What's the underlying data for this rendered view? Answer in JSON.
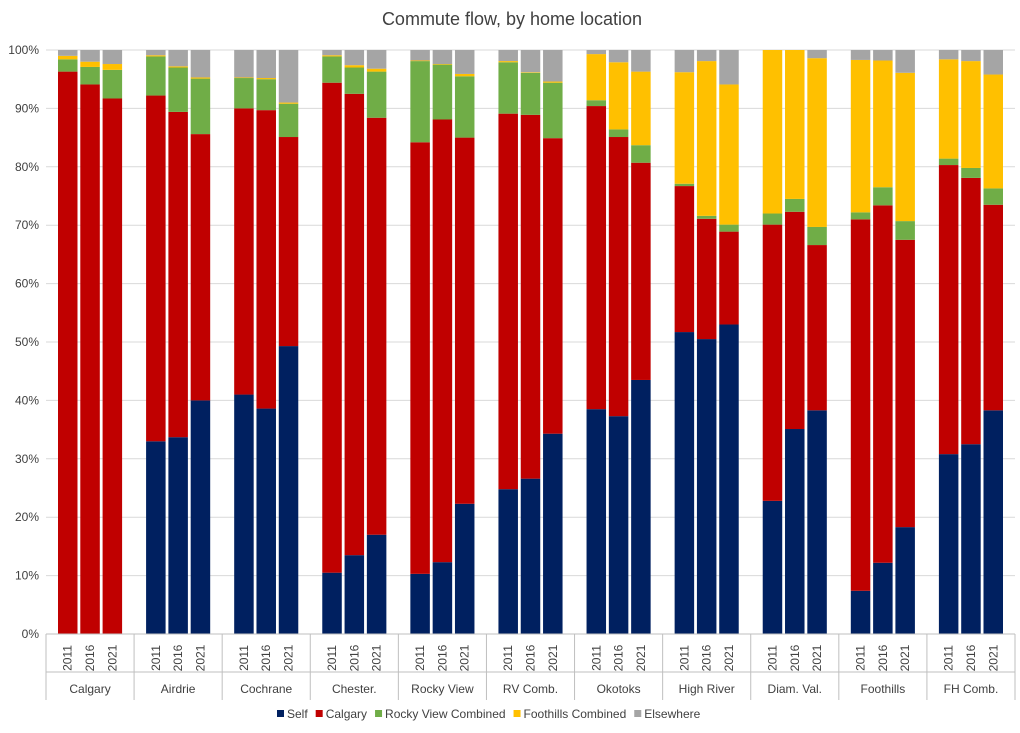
{
  "chart_data": {
    "type": "bar",
    "stacked": true,
    "normalized_percent": true,
    "title": "Commute flow, by home location",
    "y_ticks": [
      "0%",
      "10%",
      "20%",
      "30%",
      "40%",
      "50%",
      "60%",
      "70%",
      "80%",
      "90%",
      "100%"
    ],
    "ylim": [
      0,
      100
    ],
    "grid": true,
    "legend_position": "bottom",
    "groups": [
      "Calgary",
      "Airdrie",
      "Cochrane",
      "Chester.",
      "Rocky View",
      "RV Comb.",
      "Okotoks",
      "High River",
      "Diam. Val.",
      "Foothills",
      "FH Comb."
    ],
    "years": [
      "2011",
      "2016",
      "2021"
    ],
    "series": [
      {
        "name": "Self",
        "color": "#002060",
        "values": [
          [
            0,
            0,
            0
          ],
          [
            33,
            33.7,
            40
          ],
          [
            41,
            38.6,
            49.3
          ],
          [
            10.5,
            13.5,
            17
          ],
          [
            10.3,
            12.3,
            22.3
          ],
          [
            24.8,
            26.6,
            34.3
          ],
          [
            38.5,
            37.3,
            43.5
          ],
          [
            51.7,
            50.5,
            53
          ],
          [
            22.8,
            35.1,
            38.3
          ],
          [
            7.4,
            12.2,
            18.3
          ],
          [
            30.8,
            32.5,
            38.3
          ]
        ]
      },
      {
        "name": "Calgary",
        "color": "#C00000",
        "values": [
          [
            96.3,
            94.1,
            91.7
          ],
          [
            59.2,
            55.7,
            45.6
          ],
          [
            49,
            51.1,
            35.8
          ],
          [
            83.9,
            79,
            71.4
          ],
          [
            73.9,
            75.8,
            62.7
          ],
          [
            64.3,
            62.3,
            50.6
          ],
          [
            51.9,
            47.8,
            37.2
          ],
          [
            25,
            20.6,
            15.9
          ],
          [
            47.3,
            37.2,
            28.3
          ],
          [
            63.6,
            61.2,
            49.2
          ],
          [
            49.5,
            45.6,
            35.2
          ]
        ]
      },
      {
        "name": "Rocky View Combined",
        "color": "#70AD47",
        "values": [
          [
            2.1,
            3,
            4.9
          ],
          [
            6.7,
            7.6,
            9.5
          ],
          [
            5.2,
            5.3,
            5.7
          ],
          [
            4.5,
            4.5,
            7.9
          ],
          [
            13.9,
            9.4,
            10.5
          ],
          [
            8.8,
            7.2,
            9.5
          ],
          [
            1,
            1.3,
            3
          ],
          [
            0.4,
            0.5,
            1.2
          ],
          [
            1.9,
            2.2,
            3.1
          ],
          [
            1.2,
            3.1,
            3.2
          ],
          [
            1.1,
            1.7,
            2.8
          ]
        ]
      },
      {
        "name": "Foothills Combined",
        "color": "#FFC000",
        "values": [
          [
            0.6,
            0.9,
            1
          ],
          [
            0.2,
            0.2,
            0.2
          ],
          [
            0.1,
            0.2,
            0.2
          ],
          [
            0.2,
            0.4,
            0.5
          ],
          [
            0.1,
            0.1,
            0.4
          ],
          [
            0.2,
            0.1,
            0.2
          ],
          [
            7.9,
            11.5,
            12.6
          ],
          [
            19.1,
            26.5,
            24
          ],
          [
            28,
            25.5,
            28.9
          ],
          [
            26.1,
            21.7,
            25.4
          ],
          [
            17,
            18.3,
            19.5
          ]
        ]
      },
      {
        "name": "Elsewhere",
        "color": "#A5A5A5",
        "values": [
          [
            1,
            2,
            2.4
          ],
          [
            0.9,
            2.8,
            4.7
          ],
          [
            4.7,
            4.8,
            9
          ],
          [
            0.9,
            2.6,
            3.2
          ],
          [
            1.8,
            2.4,
            4.1
          ],
          [
            1.9,
            3.8,
            5.4
          ],
          [
            0.7,
            2.1,
            3.7
          ],
          [
            3.8,
            1.9,
            5.9
          ],
          [
            0,
            0,
            1.4
          ],
          [
            1.7,
            1.8,
            3.9
          ],
          [
            1.6,
            1.9,
            4.2
          ]
        ]
      }
    ]
  }
}
